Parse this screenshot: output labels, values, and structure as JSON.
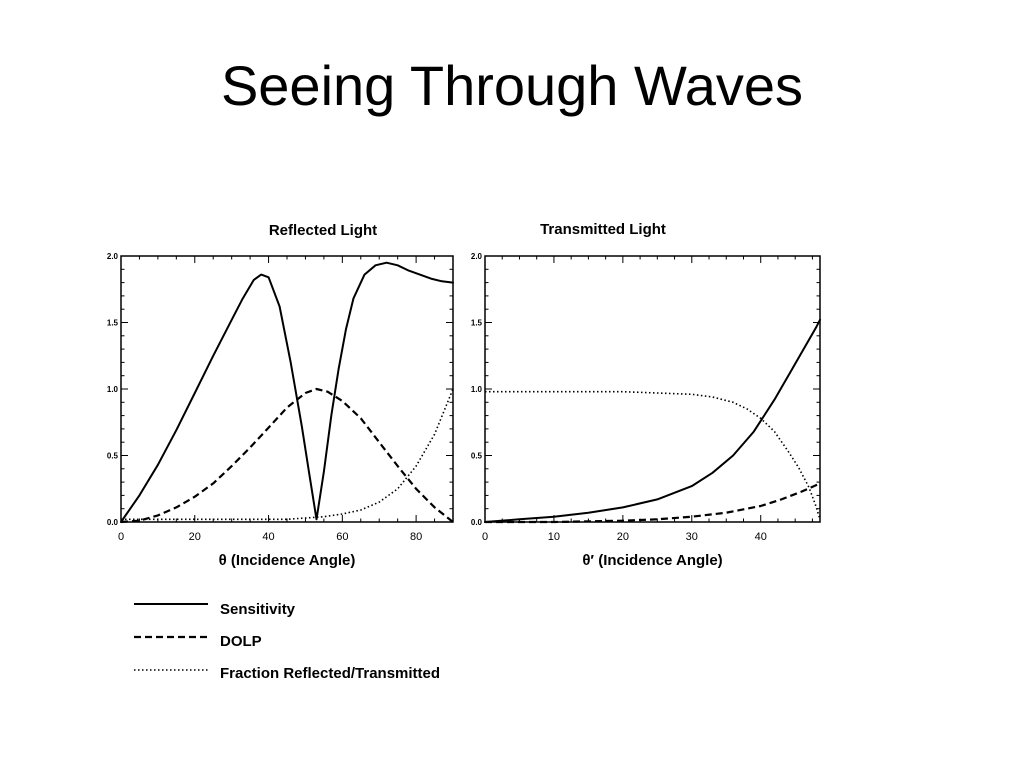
{
  "slide": {
    "title": "Seeing Through Waves"
  },
  "legend": [
    {
      "label": "Sensitivity",
      "style": "solid"
    },
    {
      "label": "DOLP",
      "style": "dashed"
    },
    {
      "label": "Fraction Reflected/Transmitted",
      "style": "dotted"
    }
  ],
  "chart_data": [
    {
      "type": "line",
      "title": "Reflected Light",
      "xlabel": "θ (Incidence Angle)",
      "ylabel": "",
      "xlim": [
        0,
        90
      ],
      "ylim": [
        0,
        2.0
      ],
      "xticks": [
        0,
        20,
        40,
        60,
        80
      ],
      "xtick_labels": [
        "0",
        "20",
        "40",
        "60",
        "80"
      ],
      "yticks": [
        0,
        0.5,
        1.0,
        1.5,
        2.0
      ],
      "ytick_labels": [
        "0.0",
        "0.5",
        "1.0",
        "1.5",
        "2.0"
      ],
      "grid": false,
      "series": [
        {
          "name": "Sensitivity",
          "style": "solid",
          "x": [
            0,
            5,
            10,
            15,
            20,
            25,
            30,
            33,
            36,
            38,
            40,
            43,
            46,
            49,
            51,
            53,
            55,
            57,
            59,
            61,
            63,
            66,
            69,
            72,
            75,
            78,
            81,
            84,
            87,
            90
          ],
          "y": [
            0,
            0.2,
            0.43,
            0.69,
            0.97,
            1.25,
            1.52,
            1.68,
            1.82,
            1.86,
            1.84,
            1.62,
            1.2,
            0.72,
            0.37,
            0.02,
            0.38,
            0.8,
            1.15,
            1.45,
            1.68,
            1.86,
            1.93,
            1.95,
            1.93,
            1.89,
            1.86,
            1.83,
            1.81,
            1.8
          ]
        },
        {
          "name": "DOLP",
          "style": "dashed",
          "x": [
            0,
            5,
            10,
            15,
            20,
            25,
            30,
            35,
            40,
            45,
            50,
            53,
            56,
            60,
            65,
            70,
            75,
            80,
            85,
            90
          ],
          "y": [
            0,
            0.01,
            0.05,
            0.11,
            0.19,
            0.29,
            0.42,
            0.56,
            0.71,
            0.86,
            0.97,
            1.0,
            0.98,
            0.91,
            0.78,
            0.6,
            0.42,
            0.25,
            0.11,
            0
          ]
        },
        {
          "name": "Fraction Reflected/Transmitted",
          "style": "dotted",
          "x": [
            0,
            10,
            20,
            30,
            40,
            45,
            50,
            55,
            60,
            65,
            70,
            75,
            80,
            85,
            90
          ],
          "y": [
            0.02,
            0.02,
            0.02,
            0.02,
            0.02,
            0.02,
            0.03,
            0.04,
            0.06,
            0.09,
            0.15,
            0.25,
            0.42,
            0.66,
            1.0
          ]
        }
      ]
    },
    {
      "type": "line",
      "title": "Transmitted Light",
      "xlabel": "θ′ (Incidence Angle)",
      "ylabel": "",
      "xlim": [
        0,
        48.6
      ],
      "ylim": [
        0,
        2.0
      ],
      "xticks": [
        0,
        10,
        20,
        30,
        40
      ],
      "xtick_labels": [
        "0",
        "10",
        "20",
        "30",
        "40"
      ],
      "yticks": [
        0,
        0.5,
        1.0,
        1.5,
        2.0
      ],
      "ytick_labels": [
        "0.0",
        "0.5",
        "1.0",
        "1.5",
        "2.0"
      ],
      "grid": false,
      "series": [
        {
          "name": "Sensitivity",
          "style": "solid",
          "x": [
            0,
            5,
            10,
            15,
            20,
            25,
            30,
            33,
            36,
            39,
            42,
            44,
            46,
            48,
            48.6
          ],
          "y": [
            0,
            0.02,
            0.04,
            0.07,
            0.11,
            0.17,
            0.27,
            0.37,
            0.5,
            0.68,
            0.92,
            1.1,
            1.28,
            1.46,
            1.52
          ]
        },
        {
          "name": "DOLP",
          "style": "dashed",
          "x": [
            0,
            10,
            20,
            25,
            30,
            35,
            40,
            43,
            46,
            48.6
          ],
          "y": [
            0,
            0,
            0.01,
            0.02,
            0.04,
            0.07,
            0.12,
            0.17,
            0.23,
            0.29
          ]
        },
        {
          "name": "Fraction Reflected/Transmitted",
          "style": "dotted",
          "x": [
            0,
            10,
            20,
            25,
            30,
            33,
            36,
            38,
            40,
            42,
            44,
            45.5,
            47,
            48,
            48.6
          ],
          "y": [
            0.98,
            0.98,
            0.98,
            0.97,
            0.96,
            0.94,
            0.9,
            0.85,
            0.78,
            0.68,
            0.53,
            0.41,
            0.26,
            0.12,
            0.02
          ]
        }
      ]
    }
  ]
}
